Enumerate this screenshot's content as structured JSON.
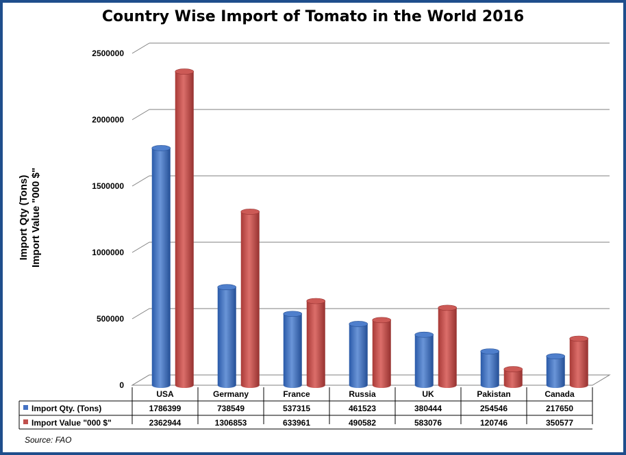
{
  "chart_data": {
    "type": "bar",
    "title": "Country Wise Import of Tomato in the World 2016",
    "ylabel_line1": "Import Qty (Tons)",
    "ylabel_line2": "Import Value \"000 $\"",
    "categories": [
      "USA",
      "Germany",
      "France",
      "Russia",
      "UK",
      "Pakistan",
      "Canada"
    ],
    "series": [
      {
        "name": "Import Qty. (Tons)",
        "values": [
          1786399,
          738549,
          537315,
          461523,
          380444,
          254546,
          217650
        ],
        "color": "#4472c4"
      },
      {
        "name": "Import Value \"000 $\"",
        "values": [
          2362944,
          1306853,
          633961,
          490582,
          583076,
          120746,
          350577
        ],
        "color": "#c0504d"
      }
    ],
    "ylim": [
      0,
      2500000
    ],
    "yticks": [
      0,
      500000,
      1000000,
      1500000,
      2000000,
      2500000
    ],
    "grid": true,
    "legend": "data-table"
  },
  "source": "Source: FAO"
}
